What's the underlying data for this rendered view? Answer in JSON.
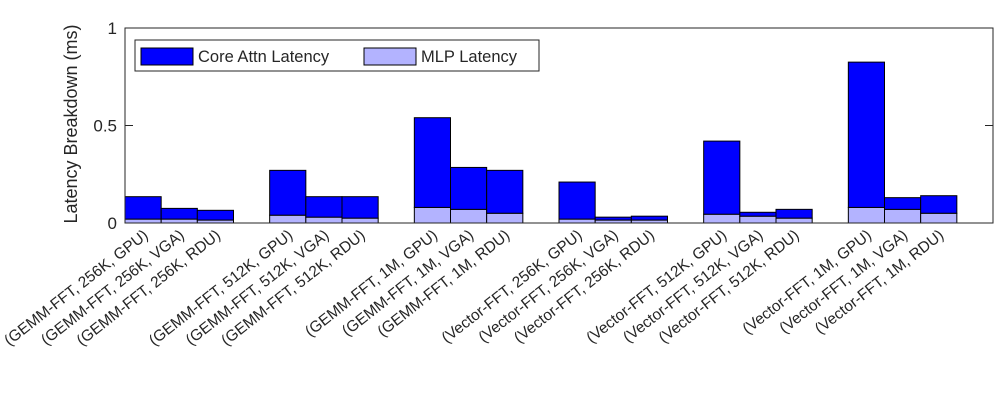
{
  "chart_data": {
    "type": "bar",
    "stacked": true,
    "categories": [
      "(GEMM-FFT, 256K, GPU)",
      "(GEMM-FFT, 256K, VGA)",
      "(GEMM-FFT, 256K, RDU)",
      "(GEMM-FFT, 512K, GPU)",
      "(GEMM-FFT, 512K, VGA)",
      "(GEMM-FFT, 512K, RDU)",
      "(GEMM-FFT, 1M, GPU)",
      "(GEMM-FFT, 1M, VGA)",
      "(GEMM-FFT, 1M, RDU)",
      "(Vector-FFT, 256K, GPU)",
      "(Vector-FFT, 256K, VGA)",
      "(Vector-FFT, 256K, RDU)",
      "(Vector-FFT, 512K, GPU)",
      "(Vector-FFT, 512K, VGA)",
      "(Vector-FFT, 512K, RDU)",
      "(Vector-FFT, 1M, GPU)",
      "(Vector-FFT, 1M, VGA)",
      "(Vector-FFT, 1M, RDU)"
    ],
    "series": [
      {
        "name": "MLP Latency",
        "color": "#b3b3ff",
        "values": [
          0.02,
          0.02,
          0.015,
          0.04,
          0.03,
          0.025,
          0.08,
          0.07,
          0.05,
          0.02,
          0.015,
          0.015,
          0.045,
          0.035,
          0.025,
          0.08,
          0.07,
          0.05
        ]
      },
      {
        "name": "Core Attn Latency",
        "color": "#0000ff",
        "values": [
          0.115,
          0.055,
          0.05,
          0.23,
          0.105,
          0.11,
          0.46,
          0.215,
          0.22,
          0.19,
          0.015,
          0.02,
          0.375,
          0.02,
          0.045,
          0.745,
          0.06,
          0.09
        ]
      }
    ],
    "group_size": 3,
    "ylabel": "Latency Breakdown (ms)",
    "xlabel": "",
    "ylim": [
      0,
      1
    ],
    "yticks": [
      0,
      0.5,
      1
    ],
    "ytick_labels": [
      "0",
      "0.5",
      "1"
    ],
    "legend": {
      "entries": [
        "Core Attn Latency",
        "MLP Latency"
      ],
      "placement": "top-left",
      "orientation": "horizontal"
    },
    "grid": false
  }
}
